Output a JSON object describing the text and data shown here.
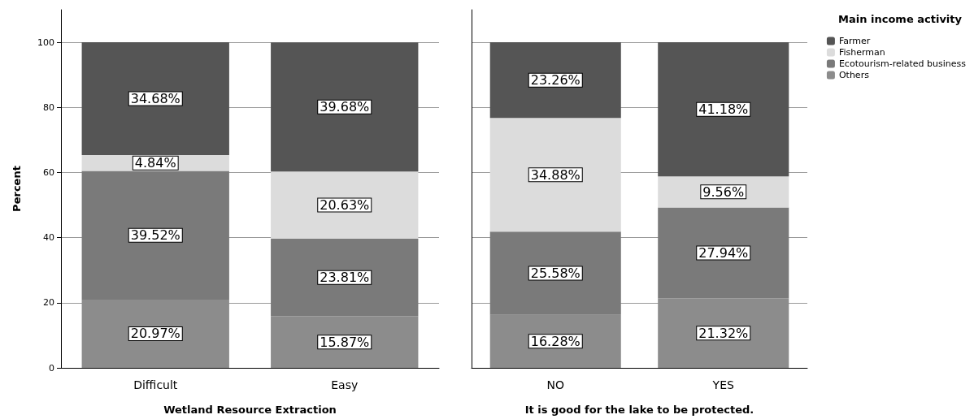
{
  "chart_data": [
    {
      "type": "bar",
      "stacked": true,
      "xlabel": "Wetland Resource Extraction",
      "ylabel": "Percent",
      "categories": [
        "Difficult",
        "Easy"
      ],
      "ylim": [
        0,
        110
      ],
      "yticks": [
        0,
        20,
        40,
        60,
        80,
        100
      ],
      "grid": "y",
      "legend": false,
      "series": [
        {
          "color": "#8c8c8c",
          "values": [
            20.97,
            15.87
          ],
          "value_labels": [
            "20.97%",
            "15.87%"
          ]
        },
        {
          "color": "#7a7a7a",
          "values": [
            39.52,
            23.81
          ],
          "value_labels": [
            "39.52%",
            "23.81%"
          ]
        },
        {
          "color": "#dcdcdc",
          "values": [
            4.84,
            20.63
          ],
          "value_labels": [
            "4.84%",
            "20.63%"
          ]
        },
        {
          "color": "#555555",
          "values": [
            34.68,
            39.68
          ],
          "value_labels": [
            "34.68%",
            "39.68%"
          ]
        }
      ]
    },
    {
      "type": "bar",
      "stacked": true,
      "xlabel": "It is good for the lake to be protected.",
      "categories": [
        "NO",
        "YES"
      ],
      "ylim": [
        0,
        110
      ],
      "yticks": [
        0,
        20,
        40,
        60,
        80,
        100
      ],
      "grid": "y",
      "tick_labels": "x",
      "legend": "top right",
      "legend_title": "Main income activity",
      "series": [
        {
          "name": "Others",
          "color": "#8c8c8c",
          "values": [
            16.28,
            21.32
          ],
          "value_labels": [
            "16.28%",
            "21.32%"
          ]
        },
        {
          "name": "Ecotourism-related business",
          "color": "#7a7a7a",
          "values": [
            25.58,
            27.94
          ],
          "value_labels": [
            "25.58%",
            "27.94%"
          ]
        },
        {
          "name": "Fisherman",
          "color": "#dcdcdc",
          "values": [
            34.88,
            9.56
          ],
          "value_labels": [
            "34.88%",
            "9.56%"
          ]
        },
        {
          "name": "Farmer",
          "color": "#555555",
          "values": [
            23.26,
            41.18
          ],
          "value_labels": [
            "23.26%",
            "41.18%"
          ]
        }
      ]
    }
  ]
}
